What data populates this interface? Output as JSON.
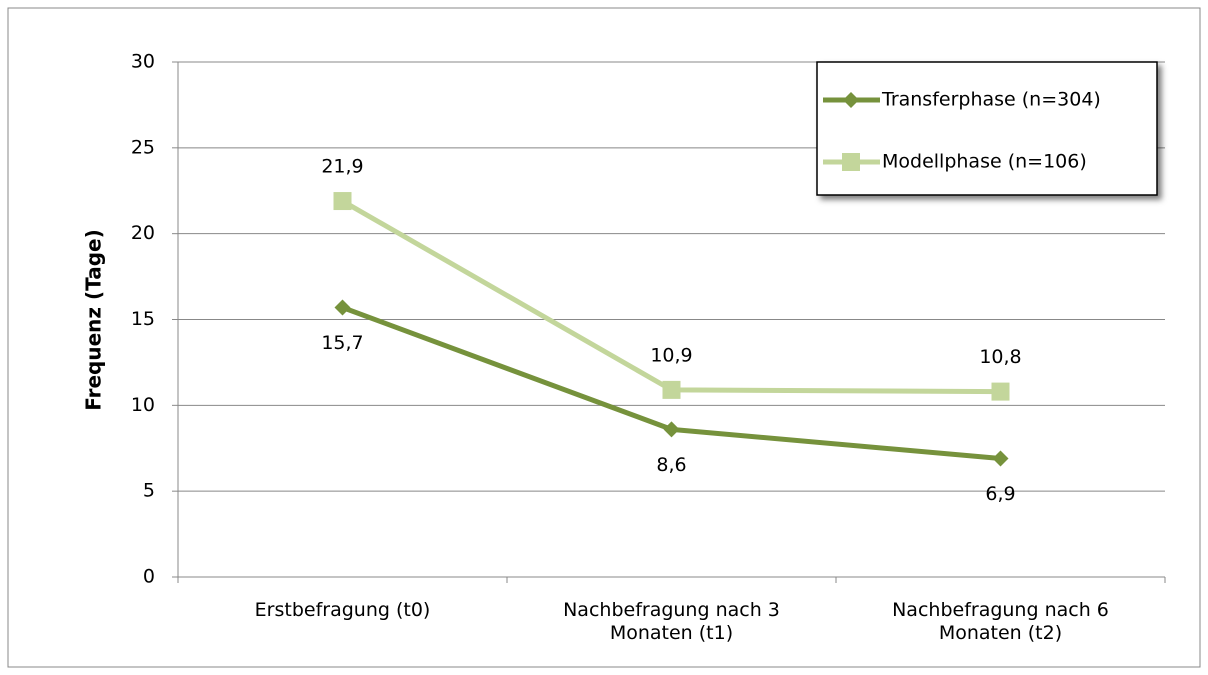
{
  "chart_data": {
    "type": "line",
    "y_label": "Frequenz (Tage)",
    "categories": [
      "Erstbefragung (t0)",
      "Nachbefragung nach 3 Monaten (t1)",
      "Nachbefragung nach 6 Monaten (t2)"
    ],
    "series": [
      {
        "name": "Transferphase (n=304)",
        "color": "#76923c",
        "marker": "diamond",
        "values": [
          15.7,
          8.6,
          6.9
        ],
        "value_labels": [
          "15,7",
          "8,6",
          "6,9"
        ]
      },
      {
        "name": "Modellphase (n=106)",
        "color": "#c3d69b",
        "marker": "square",
        "values": [
          21.9,
          10.9,
          10.8
        ],
        "value_labels": [
          "21,9",
          "10,9",
          "10,8"
        ]
      }
    ],
    "ylim": [
      0,
      30
    ],
    "yticks": [
      0,
      5,
      10,
      15,
      20,
      25,
      30
    ],
    "grid": true,
    "legend": "top-right"
  }
}
